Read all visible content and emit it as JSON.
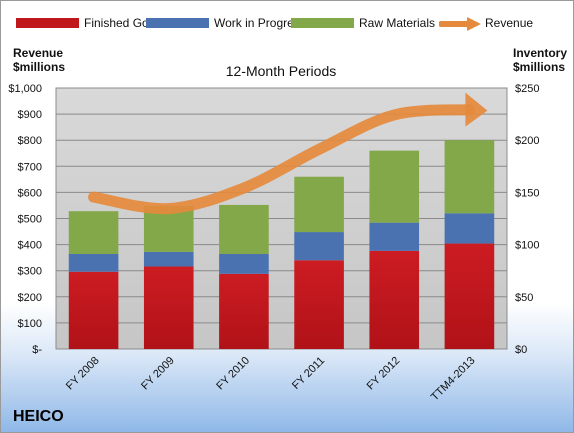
{
  "legend": [
    {
      "label": "Finished Goods",
      "color": "#c0171d"
    },
    {
      "label": "Work in Progress",
      "color": "#4a72b0"
    },
    {
      "label": "Raw Materials",
      "color": "#82a84a"
    },
    {
      "label": "Revenue",
      "color": "#e58a3c"
    }
  ],
  "left_axis_title": {
    "line1": "Revenue",
    "line2": "$millions"
  },
  "right_axis_title": {
    "line1": "Inventory",
    "line2": "$millions"
  },
  "plot_title": "12-Month Periods",
  "company": "HEICO",
  "chart_data": {
    "type": "bar",
    "stacked": true,
    "title": "12-Month Periods",
    "categories": [
      "FY 2008",
      "FY 2009",
      "FY 2010",
      "FY 2011",
      "FY 2012",
      "TTM4-2013"
    ],
    "series": [
      {
        "name": "Finished Goods",
        "axis": "right",
        "color": "#c0171d",
        "values": [
          74,
          79,
          72,
          85,
          94,
          101
        ]
      },
      {
        "name": "Work in Progress",
        "axis": "right",
        "color": "#4a72b0",
        "values": [
          17,
          14,
          19,
          27,
          27,
          29
        ]
      },
      {
        "name": "Raw Materials",
        "axis": "right",
        "color": "#82a84a",
        "values": [
          41,
          44,
          47,
          53,
          69,
          70
        ]
      },
      {
        "name": "Revenue",
        "axis": "left",
        "type": "line",
        "color": "#e58a3c",
        "values": [
          582,
          538,
          617,
          765,
          897,
          917
        ]
      }
    ],
    "left_axis": {
      "label": "Revenue $millions",
      "min": 0,
      "max": 1000,
      "ticks": [
        "$-",
        "$100",
        "$200",
        "$300",
        "$400",
        "$500",
        "$600",
        "$700",
        "$800",
        "$900",
        "$1,000"
      ]
    },
    "right_axis": {
      "label": "Inventory $millions",
      "min": 0,
      "max": 250,
      "ticks": [
        "$0",
        "$50",
        "$100",
        "$150",
        "$200",
        "$250"
      ]
    },
    "grid": true,
    "legend_position": "top"
  }
}
